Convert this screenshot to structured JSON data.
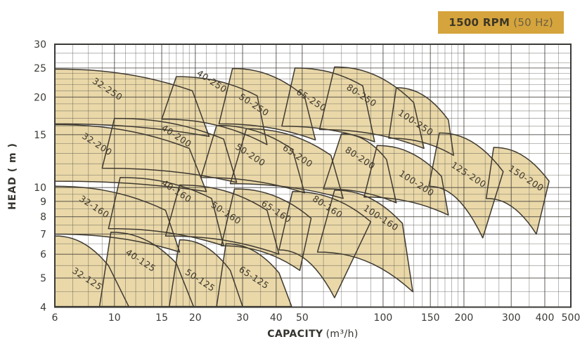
{
  "badge": {
    "rpm": "1500 RPM",
    "hz": "(50 Hz)",
    "bg": "#D5A43D",
    "rpm_color": "#3E3726",
    "hz_color": "#6E6140"
  },
  "colors": {
    "region_fill": "#EAD8A9",
    "region_stroke": "#3F3A31",
    "grid_minor": "rgba(82,80,72,0.50)",
    "grid_major": "rgba(58,56,50,0.72)",
    "plot_border": "#3A3A36",
    "tick_text": "#3B3B37",
    "region_label": "#3E382C"
  },
  "chart_data": {
    "type": "area",
    "title": "Pump selection chart 1500 RPM (50 Hz)",
    "xlabel": "CAPACITY",
    "xlabel_unit": "(m³/h)",
    "ylabel": "HEAD ( m )",
    "x_axis": {
      "scale": "log",
      "min": 6,
      "max": 500,
      "major_ticks": [
        6,
        10,
        15,
        20,
        30,
        40,
        50,
        100,
        150,
        200,
        300,
        400,
        500
      ],
      "minor_ticks": [
        7,
        8,
        9,
        11,
        12,
        13,
        14,
        16,
        17,
        18,
        19,
        22,
        24,
        26,
        28,
        35,
        45,
        60,
        70,
        80,
        90,
        110,
        120,
        130,
        140,
        160,
        170,
        180,
        190,
        240,
        270,
        350,
        450
      ]
    },
    "y_axis": {
      "scale": "log",
      "min": 4,
      "max": 30,
      "major_ticks": [
        30,
        25,
        20,
        15,
        10,
        9,
        8,
        7,
        6,
        5,
        4
      ],
      "minor_ticks": [
        4.5,
        5.5,
        6.5,
        7.5,
        8.5,
        9.5,
        11,
        12,
        13,
        14,
        16,
        17,
        18,
        19,
        21,
        22,
        23,
        24,
        26,
        28
      ]
    },
    "grid": true,
    "legend": false,
    "label_rotation_deg": 33,
    "regions": [
      {
        "name": "32-250",
        "corners": {
          "tl": [
            6,
            24.8
          ],
          "tr": [
            19.5,
            21.0
          ],
          "br": [
            22.5,
            14.8
          ],
          "bl": [
            6,
            16.3
          ]
        },
        "label": [
          9.4,
          21.2
        ]
      },
      {
        "name": "40-250",
        "corners": {
          "tl": [
            17,
            23.4
          ],
          "tr": [
            34,
            20.2
          ],
          "br": [
            37,
            13.9
          ],
          "bl": [
            15,
            16.9
          ]
        },
        "label": [
          23,
          22.5
        ]
      },
      {
        "name": "50-250",
        "corners": {
          "tl": [
            27.5,
            24.9
          ],
          "tr": [
            51,
            20.1
          ],
          "br": [
            56,
            14.4
          ],
          "bl": [
            24.5,
            16.3
          ]
        },
        "label": [
          33,
          18.8
        ]
      },
      {
        "name": "65-250",
        "corners": {
          "tl": [
            47,
            25.0
          ],
          "tr": [
            84,
            21.8
          ],
          "br": [
            93,
            14.2
          ],
          "bl": [
            42,
            16.0
          ]
        },
        "label": [
          54,
          19.5
        ]
      },
      {
        "name": "80-250",
        "corners": {
          "tl": [
            66,
            25.2
          ],
          "tr": [
            130,
            19.2
          ],
          "br": [
            142,
            13.5
          ],
          "bl": [
            58,
            15.6
          ]
        },
        "label": [
          83,
          20.2
        ]
      },
      {
        "name": "100-250",
        "corners": {
          "tl": [
            112,
            21.5
          ],
          "tr": [
            175,
            16.8
          ],
          "br": [
            183,
            12.8
          ],
          "bl": [
            105,
            14.6
          ]
        },
        "label": [
          132,
          16.4
        ]
      },
      {
        "name": "32-200",
        "corners": {
          "tl": [
            6,
            16.2
          ],
          "tr": [
            19,
            13.5
          ],
          "br": [
            22,
            9.7
          ],
          "bl": [
            6,
            10.5
          ]
        },
        "label": [
          8.6,
          13.9
        ]
      },
      {
        "name": "40-200",
        "corners": {
          "tl": [
            10,
            17.0
          ],
          "tr": [
            25.5,
            14.5
          ],
          "br": [
            28.5,
            10.4
          ],
          "bl": [
            9,
            11.6
          ]
        },
        "label": [
          17,
          14.8
        ]
      },
      {
        "name": "50-200",
        "corners": {
          "tl": [
            24,
            16.1
          ],
          "tr": [
            46,
            13.4
          ],
          "br": [
            51,
            9.6
          ],
          "bl": [
            21,
            10.8
          ]
        },
        "label": [
          32,
          12.8
        ]
      },
      {
        "name": "65-200",
        "corners": {
          "tl": [
            31,
            15.7
          ],
          "tr": [
            64,
            12.8
          ],
          "br": [
            71,
            9.2
          ],
          "bl": [
            27,
            10.3
          ]
        },
        "label": [
          48,
          12.7
        ]
      },
      {
        "name": "80-200",
        "corners": {
          "tl": [
            70,
            15.1
          ],
          "tr": [
            103,
            12.4
          ],
          "br": [
            112,
            8.9
          ],
          "bl": [
            60,
            9.9
          ]
        },
        "label": [
          82,
          12.5
        ]
      },
      {
        "name": "100-200",
        "corners": {
          "tl": [
            95,
            13.8
          ],
          "tr": [
            165,
            10.9
          ],
          "br": [
            175,
            8.1
          ],
          "bl": [
            85,
            9.3
          ]
        },
        "label": [
          133,
          10.3
        ]
      },
      {
        "name": "125-200",
        "corners": {
          "tl": [
            162,
            15.2
          ],
          "tr": [
            280,
            11.3
          ],
          "br": [
            235,
            6.8
          ],
          "bl": [
            148,
            10.1
          ]
        },
        "label": [
          208,
          11.0
        ]
      },
      {
        "name": "150-200",
        "corners": {
          "tl": [
            258,
            13.6
          ],
          "tr": [
            415,
            10.5
          ],
          "br": [
            372,
            7.0
          ],
          "bl": [
            242,
            9.2
          ]
        },
        "label": [
          340,
          10.7
        ]
      },
      {
        "name": "32-160",
        "corners": {
          "tl": [
            6,
            10.1
          ],
          "tr": [
            15.5,
            8.4
          ],
          "br": [
            17.5,
            6.1
          ],
          "bl": [
            6,
            7.0
          ]
        },
        "label": [
          8.4,
          8.6
        ]
      },
      {
        "name": "40-160",
        "corners": {
          "tl": [
            10.5,
            10.8
          ],
          "tr": [
            23,
            9.2
          ],
          "br": [
            25.5,
            6.4
          ],
          "bl": [
            9.5,
            7.3
          ]
        },
        "label": [
          17,
          9.7
        ]
      },
      {
        "name": "50-160",
        "corners": {
          "tl": [
            17.5,
            10.2
          ],
          "tr": [
            37,
            8.4
          ],
          "br": [
            41,
            6.0
          ],
          "bl": [
            15.5,
            6.9
          ]
        },
        "label": [
          26,
          8.2
        ]
      },
      {
        "name": "65-160",
        "corners": {
          "tl": [
            28,
            9.9
          ],
          "tr": [
            54,
            7.9
          ],
          "br": [
            49,
            5.3
          ],
          "bl": [
            25,
            6.4
          ]
        },
        "label": [
          40,
          8.3
        ]
      },
      {
        "name": "80-160",
        "corners": {
          "tl": [
            46,
            9.7
          ],
          "tr": [
            90,
            7.7
          ],
          "br": [
            66,
            4.3
          ],
          "bl": [
            41,
            6.2
          ]
        },
        "label": [
          62,
          8.6
        ]
      },
      {
        "name": "100-160",
        "corners": {
          "tl": [
            66,
            9.8
          ],
          "tr": [
            118,
            7.6
          ],
          "br": [
            129,
            4.5
          ],
          "bl": [
            57,
            6.1
          ]
        },
        "label": [
          98,
          7.9
        ]
      },
      {
        "name": "32-125",
        "corners": {
          "tl": [
            6,
            6.9
          ],
          "tr": [
            9.5,
            5.5
          ],
          "br": [
            11.3,
            4.02
          ],
          "bl": [
            6,
            4.02
          ]
        },
        "label": [
          7.9,
          4.95
        ]
      },
      {
        "name": "40-125",
        "corners": {
          "tl": [
            9.7,
            7.1
          ],
          "tr": [
            17,
            5.6
          ],
          "br": [
            19.7,
            4.02
          ],
          "bl": [
            8.8,
            4.02
          ]
        },
        "label": [
          12.5,
          5.7
        ]
      },
      {
        "name": "50-125",
        "corners": {
          "tl": [
            17.5,
            6.7
          ],
          "tr": [
            27,
            5.3
          ],
          "br": [
            30,
            4.02
          ],
          "bl": [
            16,
            4.02
          ]
        },
        "label": [
          20.8,
          4.9
        ]
      },
      {
        "name": "65-125",
        "corners": {
          "tl": [
            26,
            6.5
          ],
          "tr": [
            41,
            5.2
          ],
          "br": [
            45.7,
            4.02
          ],
          "bl": [
            24,
            4.02
          ]
        },
        "label": [
          33,
          5.0
        ]
      }
    ]
  }
}
